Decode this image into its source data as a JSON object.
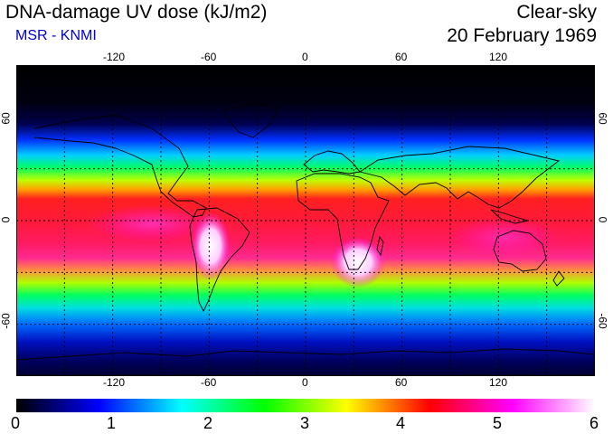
{
  "header": {
    "title": "DNA-damage UV dose (kJ/m2)",
    "source": "MSR - KNMI",
    "mode": "Clear-sky",
    "date": "20 February 1969"
  },
  "map": {
    "lon_ticks": [
      "-120",
      "-60",
      "0",
      "60",
      "120"
    ],
    "lat_ticks": [
      "60",
      "0",
      "-60"
    ],
    "projection": "equirectangular",
    "grid": "dashed 30 degree graticule"
  },
  "colorbar": {
    "labels": [
      "0",
      "1",
      "2",
      "3",
      "4",
      "5",
      "6"
    ],
    "range": [
      0,
      6
    ],
    "unit": "kJ/m2",
    "colors": [
      "#000000",
      "#0000ff",
      "#00ffff",
      "#00ff00",
      "#ffff00",
      "#ff0000",
      "#ff00ff",
      "#ffffff"
    ]
  }
}
